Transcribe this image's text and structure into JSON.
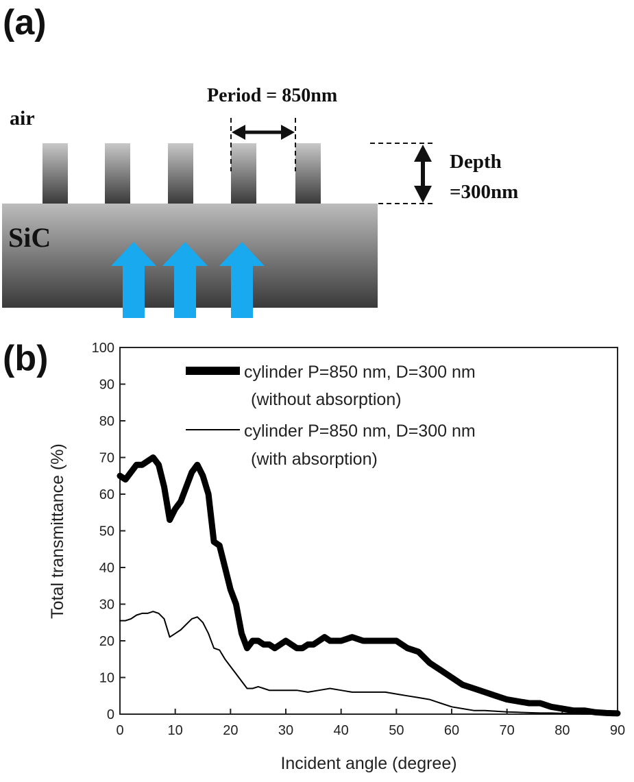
{
  "panel_a": {
    "label": "(a)",
    "air_label": "air",
    "substrate_label": "SiC",
    "period_label": "Period = 850nm",
    "depth_label_line1": "Depth",
    "depth_label_line2": "=300nm",
    "arrow_color": "#19a9ee"
  },
  "panel_b": {
    "label": "(b)"
  },
  "chart_data": {
    "type": "line",
    "xlabel": "Incident angle (degree)",
    "ylabel": "Total transmittance (%)",
    "xlim": [
      0,
      90
    ],
    "ylim": [
      0,
      100
    ],
    "x_ticks": [
      0,
      10,
      20,
      30,
      40,
      50,
      60,
      70,
      80,
      90
    ],
    "y_ticks": [
      0,
      10,
      20,
      30,
      40,
      50,
      60,
      70,
      80,
      90,
      100
    ],
    "grid": false,
    "legend_position": "top-right",
    "series": [
      {
        "name_line1": "cylinder  P=850 nm, D=300 nm",
        "name_line2": "(without absorption)",
        "style": "thick",
        "x": [
          0,
          1,
          2,
          3,
          4,
          5,
          6,
          7,
          8,
          9,
          10,
          11,
          12,
          13,
          14,
          15,
          16,
          17,
          18,
          19,
          20,
          21,
          22,
          23,
          24,
          25,
          26,
          27,
          28,
          29,
          30,
          31,
          32,
          33,
          34,
          35,
          36,
          37,
          38,
          40,
          42,
          44,
          46,
          48,
          50,
          52,
          54,
          56,
          58,
          60,
          62,
          64,
          66,
          68,
          70,
          72,
          74,
          76,
          78,
          80,
          82,
          84,
          86,
          88,
          90
        ],
        "y": [
          65,
          64,
          66,
          68,
          68,
          69,
          70,
          68,
          62,
          53,
          56,
          58,
          62,
          66,
          68,
          65,
          60,
          47,
          46,
          40,
          34,
          30,
          22,
          18,
          20,
          20,
          19,
          19,
          18,
          19,
          20,
          19,
          18,
          18,
          19,
          19,
          20,
          21,
          20,
          20,
          21,
          20,
          20,
          20,
          20,
          18,
          17,
          14,
          12,
          10,
          8,
          7,
          6,
          5,
          4,
          3.5,
          3,
          3,
          2,
          1.5,
          1,
          1,
          0.5,
          0.3,
          0.2
        ]
      },
      {
        "name_line1": "cylinder  P=850 nm, D=300 nm",
        "name_line2": "(with absorption)",
        "style": "thin",
        "x": [
          0,
          1,
          2,
          3,
          4,
          5,
          6,
          7,
          8,
          9,
          10,
          11,
          12,
          13,
          14,
          15,
          16,
          17,
          18,
          19,
          20,
          21,
          22,
          23,
          24,
          25,
          26,
          27,
          28,
          29,
          30,
          32,
          34,
          36,
          38,
          40,
          42,
          44,
          46,
          48,
          50,
          52,
          54,
          56,
          58,
          60,
          62,
          64,
          66,
          68,
          70,
          72,
          74,
          76,
          78,
          80,
          82,
          84,
          86,
          88,
          90
        ],
        "y": [
          25.5,
          25.5,
          26,
          27,
          27.5,
          27.5,
          28,
          27.5,
          26,
          21,
          22,
          23,
          24.5,
          26,
          26.5,
          25,
          22,
          18,
          17.5,
          15,
          13,
          11,
          9,
          7,
          7,
          7.5,
          7,
          6.5,
          6.5,
          6.5,
          6.5,
          6.5,
          6,
          6.5,
          7,
          6.5,
          6,
          6,
          6,
          6,
          5.5,
          5,
          4.5,
          4,
          3,
          2,
          1.5,
          1,
          1,
          0.8,
          0.6,
          0.5,
          0.4,
          0.3,
          0.3,
          0.2,
          0.2,
          0.1,
          0.1,
          0.1,
          0.1
        ]
      }
    ]
  }
}
